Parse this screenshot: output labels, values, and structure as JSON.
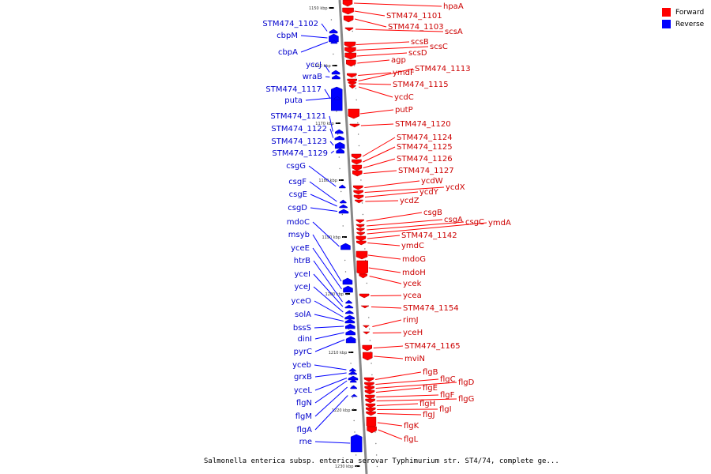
{
  "legend": [
    {
      "label": "Forward",
      "color": "#ff0000"
    },
    {
      "label": "Reverse",
      "color": "#0000ff"
    }
  ],
  "caption": "Salmonella enterica subsp. enterica serovar Typhimurium str. ST4/74, complete ge...",
  "scale_ticks": [
    "1150 kbp",
    "1160 kbp",
    "1170 kbp",
    "1180 kbp",
    "1190 kbp",
    "1200 kbp",
    "1210 kbp",
    "1220 kbp",
    "1230 kbp"
  ],
  "forward_genes": [
    "hpaA",
    "STM474_1101",
    "STM474_1103",
    "scsA",
    "scsB",
    "scsC",
    "scsD",
    "agp",
    "ymdF",
    "STM474_1113",
    "STM474_1115",
    "ycdC",
    "putP",
    "STM474_1120",
    "STM474_1124",
    "STM474_1125",
    "STM474_1126",
    "STM474_1127",
    "ycdW",
    "ycdX",
    "ycdY",
    "ycdZ",
    "csgB",
    "csgA",
    "csgC",
    "ymdA",
    "STM474_1142",
    "ymdC",
    "mdoG",
    "mdoH",
    "ycek",
    "ycea",
    "STM474_1154",
    "rimJ",
    "yceH",
    "STM474_1165",
    "mviN",
    "flgB",
    "flgC",
    "flgD",
    "flgE",
    "flgF",
    "flgG",
    "flgH",
    "flgI",
    "flgJ",
    "flgK",
    "flgL"
  ],
  "reverse_genes": [
    "STM474_1102",
    "cbpM",
    "cbpA",
    "yccJ",
    "wraB",
    "STM474_1117",
    "puta",
    "STM474_1121",
    "STM474_1122",
    "STM474_1123",
    "STM474_1129",
    "csgG",
    "csgF",
    "csgE",
    "csgD",
    "mdoC",
    "msyb",
    "yceE",
    "htrB",
    "yceI",
    "yceJ",
    "yceO",
    "solA",
    "bssS",
    "dinI",
    "pyrC",
    "yceb",
    "grxB",
    "yceL",
    "flgN",
    "flgM",
    "flgA",
    "rne"
  ],
  "colors": {
    "forward": "#ff0000",
    "reverse": "#0000ff",
    "axis": "#888888"
  }
}
